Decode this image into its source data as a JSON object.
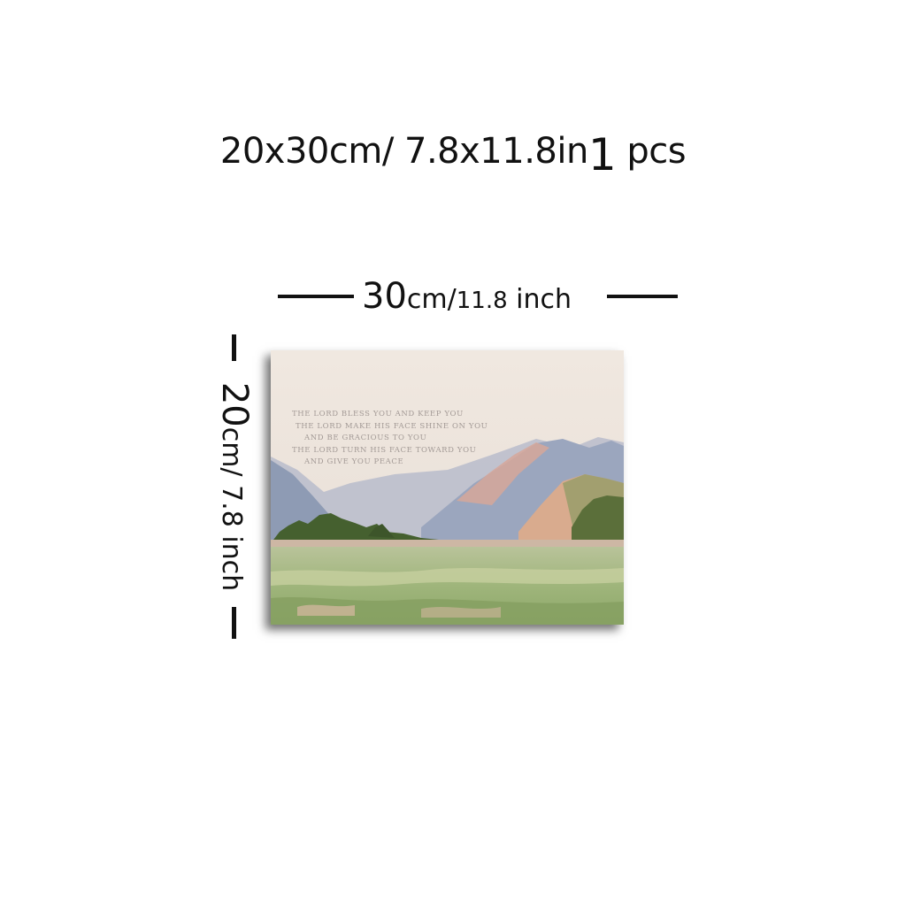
{
  "title": {
    "size": "20x30cm/ 7.8x11.8in",
    "quantity_number": "1",
    "quantity_unit": "pcs"
  },
  "width_dimension": {
    "value": "30",
    "unit": "cm/",
    "inch_value": "11.8",
    "inch_unit": " inch"
  },
  "height_dimension": {
    "value": "20",
    "unit": "cm/ 7.8 inch"
  },
  "painting": {
    "verse_lines": [
      "THE LORD BLESS YOU AND KEEP YOU",
      "THE LORD MAKE HIS FACE SHINE ON YOU",
      "AND BE GRACIOUS TO YOU",
      "THE LORD TURN HIS FACE TOWARD YOU",
      "AND GIVE YOU PEACE"
    ],
    "colors": {
      "sky": "#efe6dd",
      "mountains": "#9aa6bd",
      "mountain_pink": "#d8a698",
      "meadow": "#9db27a",
      "trees": "#3f5a2c"
    }
  }
}
